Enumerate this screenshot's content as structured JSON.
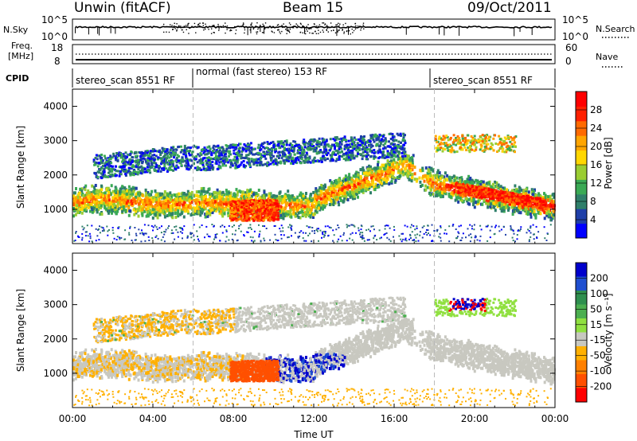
{
  "header": {
    "title": "Unwin (fitACF)",
    "beam": "Beam 15",
    "date": "09/Oct/2011"
  },
  "top_panels": {
    "nsky": {
      "label": "N.Sky",
      "right_label": "N.Search",
      "y_ticks_left": [
        "10^5",
        "10^0"
      ],
      "y_ticks_right": [
        "10^5",
        "10^0"
      ]
    },
    "freq": {
      "label_lines": [
        "Freq.",
        "[MHz]"
      ],
      "right_label": "Nave",
      "y_ticks_left": [
        "18",
        "8"
      ],
      "y_ticks_right": [
        "60",
        "0"
      ]
    },
    "cpid": {
      "label": "CPID",
      "segments": [
        {
          "label": "stereo_scan 8551 RF",
          "start_hour": 0,
          "end_hour": 6
        },
        {
          "label": "normal (fast stereo) 153 RF",
          "start_hour": 6,
          "end_hour": 18
        },
        {
          "label": "stereo_scan 8551 RF",
          "start_hour": 18,
          "end_hour": 24
        }
      ]
    }
  },
  "chart_data": [
    {
      "type": "heatmap",
      "name": "Power",
      "ylabel": "Slant Range [km]",
      "xlabel": "",
      "ylim": [
        0,
        4500
      ],
      "yticks": [
        1000,
        2000,
        3000,
        4000
      ],
      "xlim_hours": [
        0,
        24
      ],
      "colorbar": {
        "label": "Power [dB]",
        "ticks": [
          "4",
          "8",
          "12",
          "16",
          "20",
          "24",
          "28"
        ],
        "colors": [
          "#0000ff",
          "#1f3fa8",
          "#2f7f6a",
          "#3aaa55",
          "#9acd32",
          "#ffd700",
          "#ffa500",
          "#ff6a00",
          "#ff2000",
          "#ff0000"
        ]
      }
    },
    {
      "type": "heatmap",
      "name": "Velocity",
      "ylabel": "Slant Range [km]",
      "xlabel": "Time UT",
      "ylim": [
        0,
        4500
      ],
      "yticks": [
        1000,
        2000,
        3000,
        4000
      ],
      "xlim_hours": [
        0,
        24
      ],
      "colorbar": {
        "label": "Velocity [m s⁻¹]",
        "ticks": [
          "200",
          "100",
          "50",
          "15",
          "-15",
          "-50",
          "-100",
          "-200"
        ],
        "colors": [
          "#0000cc",
          "#1f4fd0",
          "#2f8f4f",
          "#4caf50",
          "#90e040",
          "#c8c8c0",
          "#ffb000",
          "#ff8000",
          "#ff5000",
          "#ff0000"
        ]
      }
    }
  ],
  "x_ticks": [
    "00:00",
    "04:00",
    "08:00",
    "12:00",
    "16:00",
    "20:00",
    "00:00"
  ],
  "x_label": "Time UT"
}
